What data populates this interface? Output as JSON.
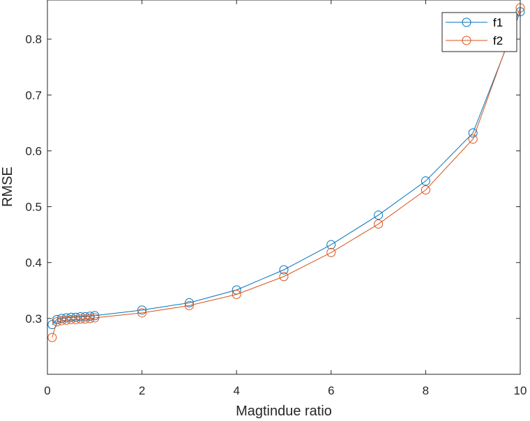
{
  "chart_data": {
    "type": "line",
    "xlabel": "Magtindue ratio",
    "ylabel": "RMSE",
    "xlim": [
      0,
      10
    ],
    "ylim": [
      0.2,
      0.87
    ],
    "xticks": [
      0,
      2,
      4,
      6,
      8,
      10
    ],
    "yticks": [
      0.3,
      0.4,
      0.5,
      0.6,
      0.7,
      0.8
    ],
    "x": [
      0.1,
      0.2,
      0.3,
      0.4,
      0.5,
      0.6,
      0.7,
      0.8,
      0.9,
      1,
      2,
      3,
      4,
      5,
      6,
      7,
      8,
      9,
      10
    ],
    "series": [
      {
        "name": "f1",
        "color": "#0072BD",
        "marker": "circle",
        "values": [
          0.289,
          0.298,
          0.3,
          0.301,
          0.302,
          0.302,
          0.303,
          0.303,
          0.304,
          0.305,
          0.315,
          0.328,
          0.351,
          0.387,
          0.432,
          0.485,
          0.546,
          0.632,
          0.849
        ]
      },
      {
        "name": "f2",
        "color": "#D95319",
        "marker": "circle",
        "values": [
          0.266,
          0.294,
          0.296,
          0.297,
          0.298,
          0.298,
          0.299,
          0.299,
          0.3,
          0.301,
          0.31,
          0.323,
          0.343,
          0.375,
          0.418,
          0.469,
          0.53,
          0.621,
          0.856
        ]
      }
    ],
    "legend": "top-right",
    "grid": false
  }
}
